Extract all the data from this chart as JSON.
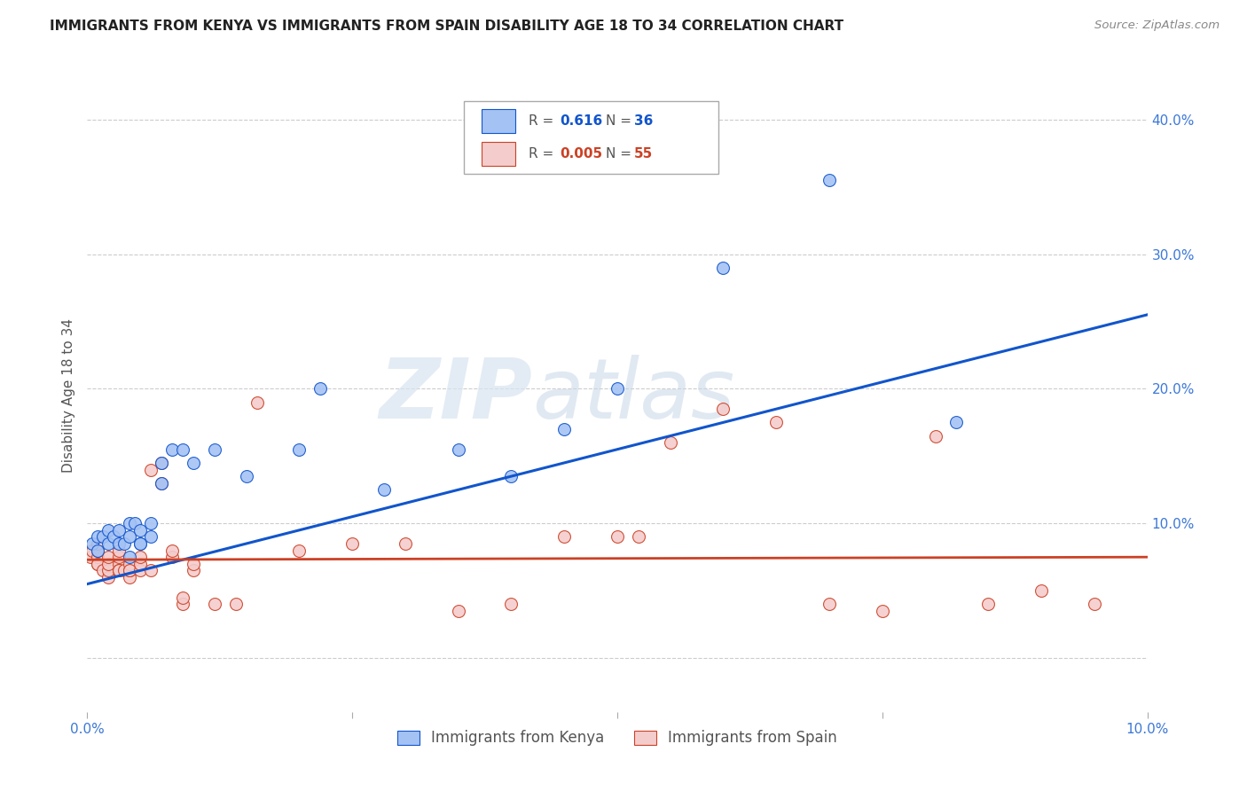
{
  "title": "IMMIGRANTS FROM KENYA VS IMMIGRANTS FROM SPAIN DISABILITY AGE 18 TO 34 CORRELATION CHART",
  "source": "Source: ZipAtlas.com",
  "ylabel": "Disability Age 18 to 34",
  "xlim": [
    0.0,
    0.1
  ],
  "ylim": [
    -0.04,
    0.43
  ],
  "yticks": [
    0.0,
    0.1,
    0.2,
    0.3,
    0.4
  ],
  "xticks": [
    0.0,
    0.025,
    0.05,
    0.075,
    0.1
  ],
  "xtick_labels": [
    "0.0%",
    "",
    "",
    "",
    "10.0%"
  ],
  "ytick_labels": [
    "",
    "10.0%",
    "20.0%",
    "30.0%",
    "40.0%"
  ],
  "kenya_R": "0.616",
  "kenya_N": "36",
  "spain_R": "0.005",
  "spain_N": "55",
  "kenya_color": "#a4c2f4",
  "spain_color": "#f4cccc",
  "kenya_line_color": "#1155cc",
  "spain_line_color": "#cc4125",
  "watermark_zip": "ZIP",
  "watermark_atlas": "atlas",
  "legend_label_kenya": "Immigrants from Kenya",
  "legend_label_spain": "Immigrants from Spain",
  "kenya_x": [
    0.0005,
    0.001,
    0.001,
    0.0015,
    0.002,
    0.002,
    0.0025,
    0.003,
    0.003,
    0.0035,
    0.004,
    0.004,
    0.004,
    0.0045,
    0.005,
    0.005,
    0.005,
    0.006,
    0.006,
    0.007,
    0.007,
    0.008,
    0.009,
    0.01,
    0.012,
    0.015,
    0.02,
    0.022,
    0.028,
    0.035,
    0.04,
    0.045,
    0.05,
    0.06,
    0.07,
    0.082
  ],
  "kenya_y": [
    0.085,
    0.09,
    0.08,
    0.09,
    0.085,
    0.095,
    0.09,
    0.085,
    0.095,
    0.085,
    0.09,
    0.1,
    0.075,
    0.1,
    0.085,
    0.095,
    0.085,
    0.1,
    0.09,
    0.13,
    0.145,
    0.155,
    0.155,
    0.145,
    0.155,
    0.135,
    0.155,
    0.2,
    0.125,
    0.155,
    0.135,
    0.17,
    0.2,
    0.29,
    0.355,
    0.175
  ],
  "spain_x": [
    0.0003,
    0.0005,
    0.001,
    0.001,
    0.001,
    0.001,
    0.001,
    0.0015,
    0.002,
    0.002,
    0.002,
    0.002,
    0.003,
    0.003,
    0.003,
    0.003,
    0.003,
    0.0035,
    0.004,
    0.004,
    0.004,
    0.004,
    0.005,
    0.005,
    0.005,
    0.006,
    0.006,
    0.007,
    0.007,
    0.008,
    0.008,
    0.009,
    0.009,
    0.01,
    0.01,
    0.012,
    0.014,
    0.016,
    0.02,
    0.025,
    0.03,
    0.035,
    0.04,
    0.045,
    0.05,
    0.052,
    0.055,
    0.06,
    0.065,
    0.07,
    0.075,
    0.08,
    0.085,
    0.09,
    0.095
  ],
  "spain_y": [
    0.075,
    0.08,
    0.07,
    0.075,
    0.08,
    0.085,
    0.07,
    0.065,
    0.06,
    0.065,
    0.07,
    0.075,
    0.07,
    0.075,
    0.08,
    0.065,
    0.065,
    0.065,
    0.06,
    0.065,
    0.07,
    0.065,
    0.065,
    0.07,
    0.075,
    0.065,
    0.14,
    0.13,
    0.145,
    0.075,
    0.08,
    0.04,
    0.045,
    0.065,
    0.07,
    0.04,
    0.04,
    0.19,
    0.08,
    0.085,
    0.085,
    0.035,
    0.04,
    0.09,
    0.09,
    0.09,
    0.16,
    0.185,
    0.175,
    0.04,
    0.035,
    0.165,
    0.04,
    0.05,
    0.04
  ],
  "kenya_line_x": [
    0.0,
    0.1
  ],
  "kenya_line_y": [
    0.055,
    0.255
  ],
  "spain_line_x": [
    0.0,
    0.1
  ],
  "spain_line_y": [
    0.073,
    0.075
  ]
}
